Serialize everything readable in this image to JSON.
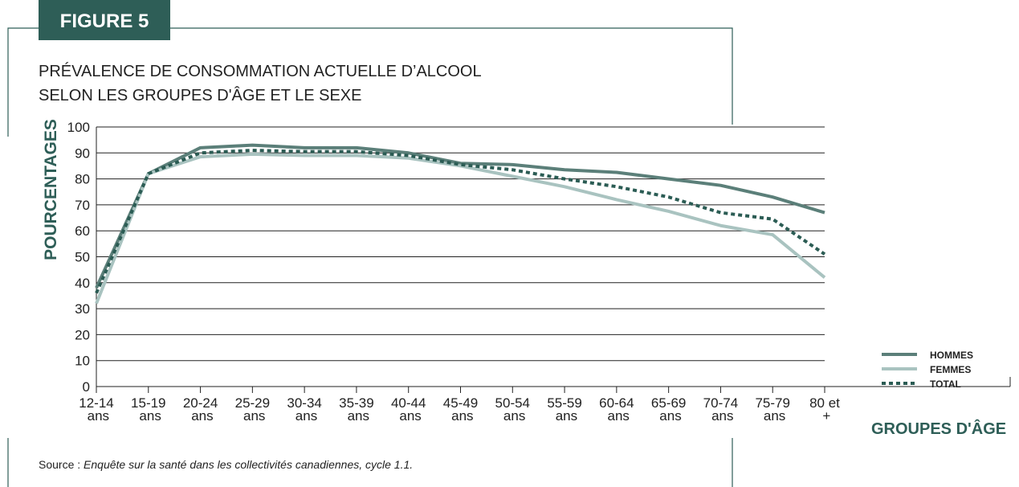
{
  "figure_label": "FIGURE 5",
  "source_label": "Source :",
  "source_text": "Enquête sur la santé dans les collectivités canadiennes, cycle 1.1.",
  "chart_data": {
    "type": "line",
    "title": [
      "PRÉVALENCE DE CONSOMMATION ACTUELLE D’ALCOOL",
      "SELON LES GROUPES D'ÂGE ET LE SEXE"
    ],
    "y_label": "POURCENTAGES",
    "x_label": "GROUPES D'ÂGE",
    "categories": [
      "12-14 ans",
      "15-19 ans",
      "20-24 ans",
      "25-29 ans",
      "30-34 ans",
      "35-39 ans",
      "40-44 ans",
      "45-49 ans",
      "50-54 ans",
      "55-59 ans",
      "60-64 ans",
      "65-69 ans",
      "70-74 ans",
      "75-79 ans",
      "80 et +"
    ],
    "ylim": [
      0,
      100
    ],
    "yticks": [
      0,
      10,
      20,
      30,
      40,
      50,
      60,
      70,
      80,
      90,
      100
    ],
    "grid": true,
    "legend": "right",
    "series": [
      {
        "name": "HOMMES",
        "color": "#5b7f79",
        "style": "solid",
        "values": [
          38,
          82,
          92,
          93,
          92,
          92,
          90,
          86,
          85.5,
          83.5,
          82.5,
          80,
          77.5,
          73,
          67
        ]
      },
      {
        "name": "FEMMES",
        "color": "#a9c3c0",
        "style": "solid",
        "values": [
          32,
          82,
          88.5,
          89.5,
          89,
          89,
          88,
          85,
          81,
          77,
          72,
          67.5,
          62,
          58.5,
          42
        ]
      },
      {
        "name": "TOTAL",
        "color": "#2b5c54",
        "style": "dotted",
        "values": [
          36,
          82,
          90,
          91,
          90.5,
          90.5,
          89,
          85.5,
          83.5,
          80,
          77,
          73,
          67,
          64.5,
          51
        ]
      }
    ]
  }
}
